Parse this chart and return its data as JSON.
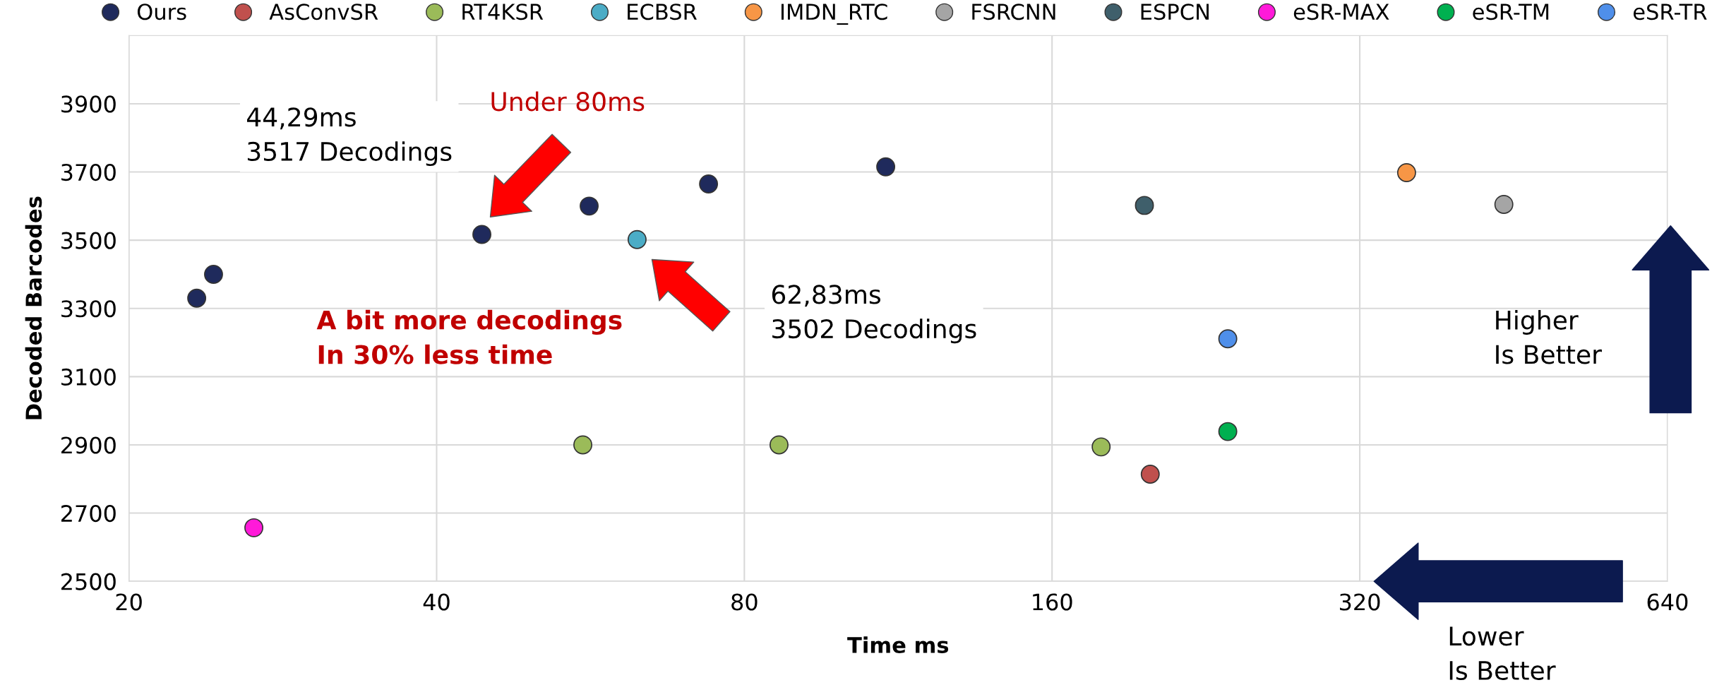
{
  "chart_data": {
    "type": "scatter",
    "xlabel": "Time ms",
    "ylabel": "Decoded Barcodes",
    "log": "x",
    "xlim": [
      20,
      640
    ],
    "xticks": [
      20,
      40,
      80,
      160,
      320,
      640
    ],
    "ylim": [
      2500,
      4100
    ],
    "yticks": [
      2500,
      2700,
      2900,
      3100,
      3300,
      3500,
      3700,
      3900
    ],
    "grid": true,
    "legend": "top",
    "marker": "circle",
    "series": [
      {
        "name": "Ours",
        "color": "#1f2a5c",
        "x": [
          23.3,
          24.2,
          44.29,
          56.4,
          73.8,
          110
        ],
        "values": [
          3330,
          3400,
          3517,
          3600,
          3665,
          3715
        ]
      },
      {
        "name": "AsConvSR",
        "color": "#c0504d",
        "x": [
          199.6
        ],
        "values": [
          2814
        ]
      },
      {
        "name": "RT4KSR",
        "color": "#9bbb59",
        "x": [
          55.6,
          86.5,
          178.7
        ],
        "values": [
          2900,
          2900,
          2894
        ]
      },
      {
        "name": "ECBSR",
        "color": "#4bacc6",
        "x": [
          62.83
        ],
        "values": [
          3502
        ]
      },
      {
        "name": "IMDN_RTC",
        "color": "#f79646",
        "x": [
          355.6
        ],
        "values": [
          3698
        ]
      },
      {
        "name": "FSRCNN",
        "color": "#a5a5a5",
        "x": [
          442.7
        ],
        "values": [
          3605
        ]
      },
      {
        "name": "ESPCN",
        "color": "#3f5f6b",
        "x": [
          197
        ],
        "values": [
          3602
        ]
      },
      {
        "name": "eSR-MAX",
        "color": "#ff1ad9",
        "x": [
          26.5
        ],
        "values": [
          2657
        ]
      },
      {
        "name": "eSR-TM",
        "color": "#00b050",
        "x": [
          237.7
        ],
        "values": [
          2939
        ]
      },
      {
        "name": "eSR-TR",
        "color": "#4f8fea",
        "x": [
          237.7
        ],
        "values": [
          3211
        ]
      }
    ],
    "annotations": [
      "Under 80ms",
      "44,29ms\n3517 Decodings",
      "62,83ms\n3502 Decodings",
      "A bit more decodings\nIn 30% less time",
      "Higher\nIs Better",
      "Lower\nIs Better"
    ]
  }
}
